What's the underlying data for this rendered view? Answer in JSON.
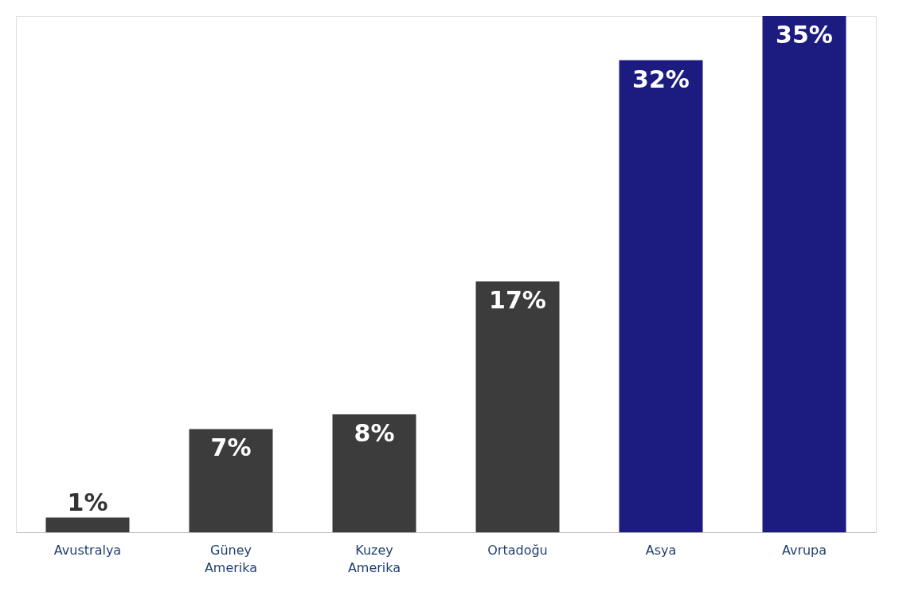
{
  "chart_data": {
    "type": "bar",
    "categories": [
      "Avustralya",
      "Güney Amerika",
      "Kuzey Amerika",
      "Ortadoğu",
      "Asya",
      "Avrupa"
    ],
    "values": [
      1,
      7,
      8,
      17,
      32,
      35
    ],
    "value_labels": [
      "1%",
      "7%",
      "8%",
      "17%",
      "32%",
      "35%"
    ],
    "colors": [
      "#3c3c3c",
      "#3c3c3c",
      "#3c3c3c",
      "#3c3c3c",
      "#1c1c80",
      "#1c1c80"
    ],
    "grid": false
  }
}
